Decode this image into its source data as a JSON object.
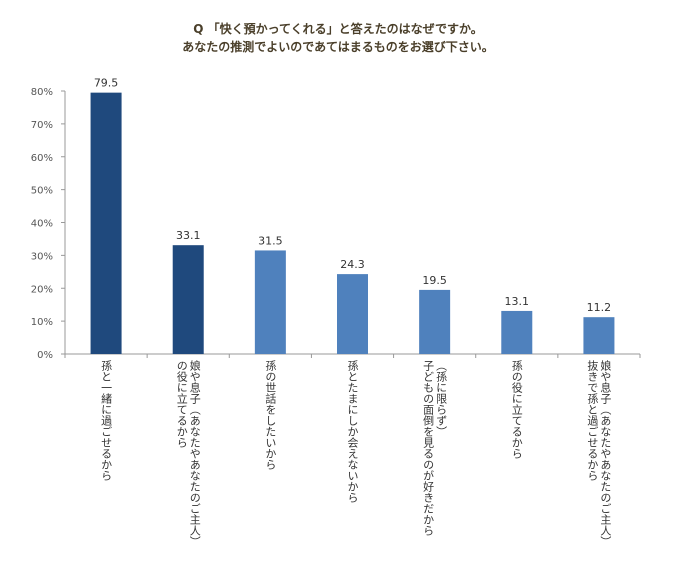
{
  "question": {
    "line1": "Q 「快く預かってくれる」と答えたのはなぜですか。",
    "line2": "あなたの推測でよいのであてはまるものをお選び下さい。"
  },
  "chart_data": {
    "type": "bar",
    "categories": [
      [
        "孫と一緒に過ごせるから"
      ],
      [
        "娘や息子（あなたやあなたのご主人）",
        "の役に立てるから"
      ],
      [
        "孫の世話をしたいから"
      ],
      [
        "孫とたまにしか会えないから"
      ],
      [
        "（孫に限らず）",
        "子どもの面倒を見るのが好きだから"
      ],
      [
        "孫の役に立てるから"
      ],
      [
        "娘や息子（あなたやあなたのご主人）",
        "抜きで孫と過ごせるから"
      ]
    ],
    "values": [
      79.5,
      33.1,
      31.5,
      24.3,
      19.5,
      13.1,
      11.2
    ],
    "value_labels": [
      "79.5",
      "33.1",
      "31.5",
      "24.3",
      "19.5",
      "13.1",
      "11.2"
    ],
    "yticks": [
      "0%",
      "10%",
      "20%",
      "30%",
      "40%",
      "50%",
      "60%",
      "70%",
      "80%"
    ],
    "ylim": [
      0,
      80
    ],
    "colors": {
      "highlight": "#1f497d",
      "normal": "#4f81bd",
      "axis": "#999999",
      "title": "#4a3f2a"
    },
    "highlight_indices": [
      0,
      1
    ]
  }
}
